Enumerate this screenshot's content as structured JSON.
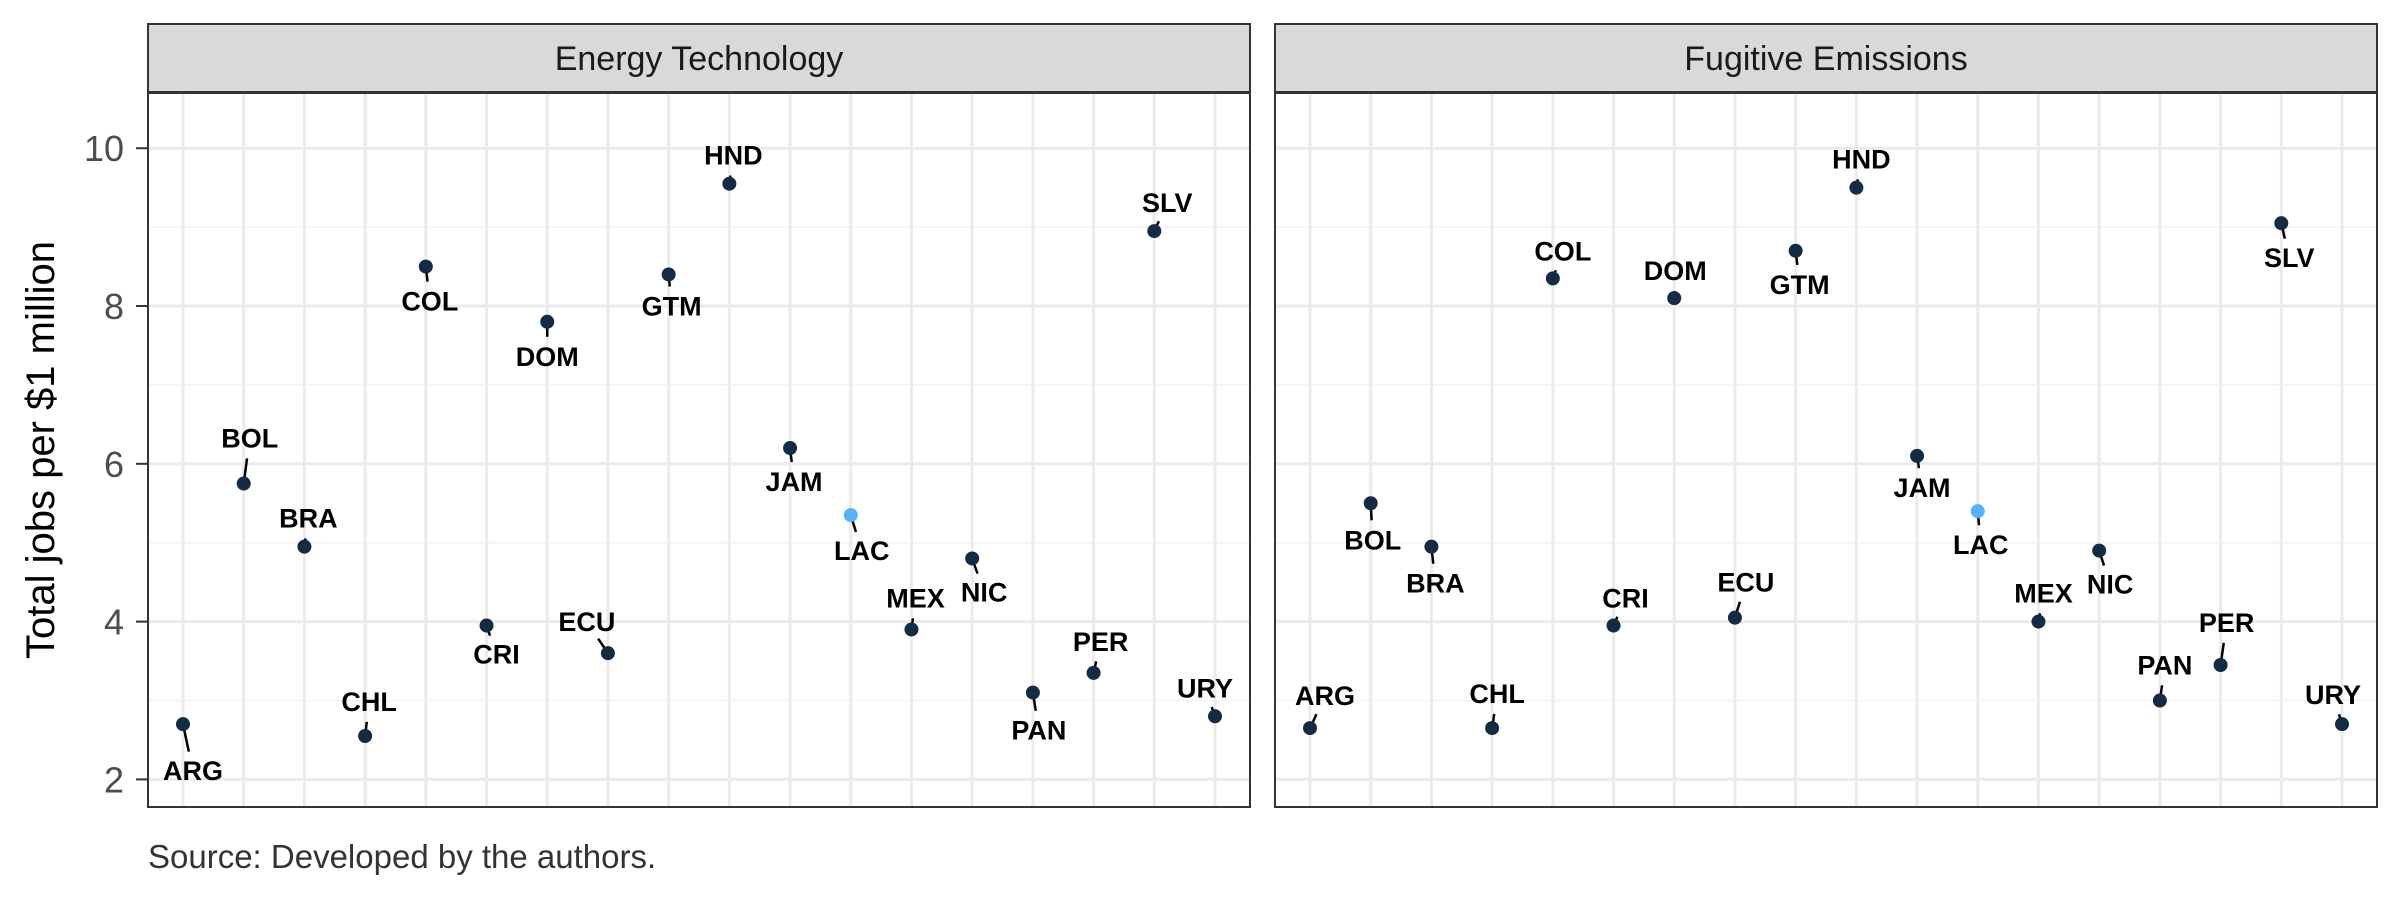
{
  "chart_data": {
    "type": "scatter",
    "ylabel": "Total jobs per $1 million",
    "ylim": [
      1.65,
      10.7
    ],
    "yticks": [
      2,
      4,
      6,
      8,
      10
    ],
    "grid": true,
    "caption": "Source: Developed by the authors.",
    "colors": {
      "point": "#132b43",
      "highlight": "#56b1f7",
      "strip": "#d9d9d9",
      "grid": "#ebebeb",
      "border": "#333333"
    },
    "categories": [
      "ARG",
      "BOL",
      "BRA",
      "CHL",
      "COL",
      "CRI",
      "DOM",
      "ECU",
      "GTM",
      "HND",
      "JAM",
      "LAC",
      "MEX",
      "NIC",
      "PAN",
      "PER",
      "SLV",
      "URY"
    ],
    "highlight": "LAC",
    "panels": [
      {
        "title": "Energy Technology",
        "values": [
          2.7,
          5.75,
          4.95,
          2.55,
          8.5,
          3.95,
          7.8,
          3.6,
          8.4,
          9.55,
          6.2,
          5.35,
          3.9,
          4.8,
          3.1,
          3.35,
          8.95,
          2.8
        ]
      },
      {
        "title": "Fugitive Emissions",
        "values": [
          2.65,
          5.5,
          4.95,
          2.65,
          8.35,
          3.95,
          8.1,
          4.05,
          8.7,
          9.5,
          6.1,
          5.4,
          4.0,
          4.9,
          3.0,
          3.45,
          9.05,
          2.7
        ]
      }
    ]
  }
}
